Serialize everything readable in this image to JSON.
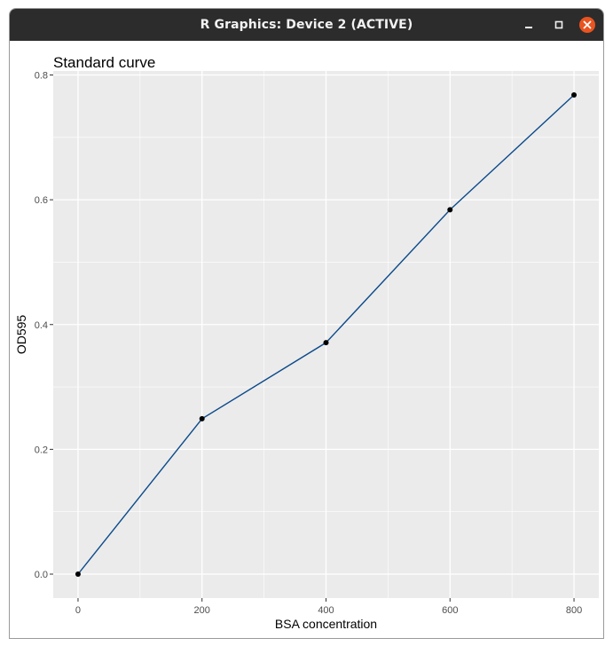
{
  "window": {
    "title": "R Graphics: Device 2 (ACTIVE)",
    "buttons": [
      "minimize-icon",
      "maximize-icon",
      "close-icon"
    ],
    "close_color": "#e95420",
    "titlebar_color": "#2c2c2c"
  },
  "chart_data": {
    "type": "line",
    "title": "Standard curve",
    "xlabel": "BSA concentration",
    "ylabel": "OD595",
    "x": [
      0,
      200,
      400,
      600,
      800
    ],
    "series": [
      {
        "values": [
          0.0,
          0.249,
          0.371,
          0.584,
          0.768
        ],
        "color": "#0b4a8b",
        "point_color": "#000000"
      }
    ],
    "xlim": [
      -40,
      840
    ],
    "ylim": [
      -0.0384,
      0.8064
    ],
    "xticks": [
      0,
      200,
      400,
      600,
      800
    ],
    "xtick_labels": [
      "0",
      "200",
      "400",
      "600",
      "800"
    ],
    "yticks": [
      0.0,
      0.2,
      0.4,
      0.6,
      0.8
    ],
    "ytick_labels": [
      "0.0",
      "0.2",
      "0.4",
      "0.6",
      "0.8"
    ],
    "grid": true,
    "panel_background": "#ebebeb",
    "grid_color": "#ffffff",
    "legend": "none"
  }
}
